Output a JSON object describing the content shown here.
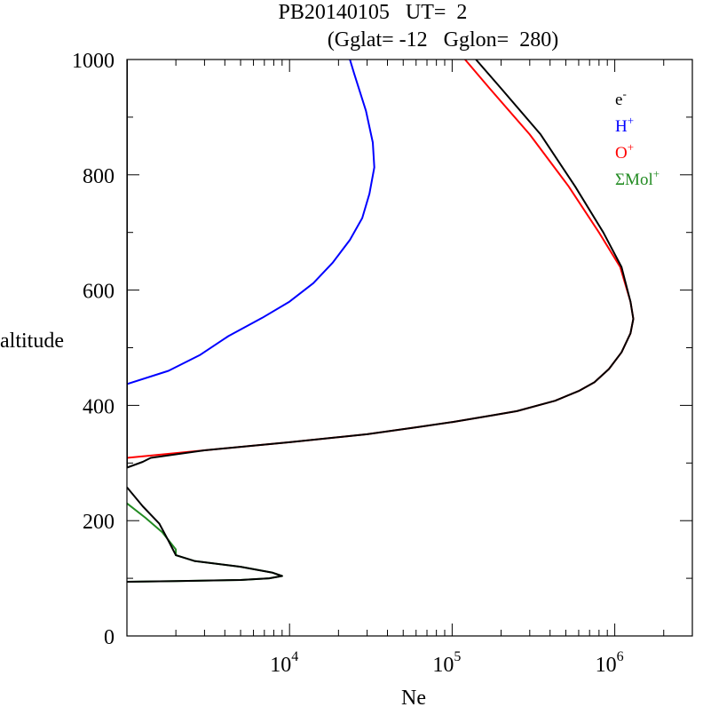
{
  "title_line1": "PB20140105   UT=  2",
  "title_line2": "(Gglat= -12   Gglon=  280)",
  "colors": {
    "e": "#000000",
    "H": "#0000ff",
    "O": "#ff0000",
    "Mol": "#228b22",
    "axis": "#000000"
  },
  "chart_data": {
    "type": "line",
    "xlabel": "Ne",
    "ylabel": "altitude",
    "xscale": "log",
    "xlim": [
      1000,
      3000000
    ],
    "ylim": [
      0,
      1000
    ],
    "x_tick_labels": [
      {
        "value": 10000,
        "base": "10",
        "exp": "4"
      },
      {
        "value": 100000,
        "base": "10",
        "exp": "5"
      },
      {
        "value": 1000000,
        "base": "10",
        "exp": "6"
      }
    ],
    "y_tick_labels": [
      "0",
      "200",
      "400",
      "600",
      "800",
      "1000"
    ],
    "y_ticks": [
      0,
      200,
      400,
      600,
      800,
      1000
    ],
    "legend_position": "top-right",
    "legend": [
      {
        "base": "e",
        "sup": "-",
        "color": "#000000"
      },
      {
        "base": "H",
        "sup": "+",
        "color": "#0000ff"
      },
      {
        "base": "O",
        "sup": "+",
        "color": "#ff0000"
      },
      {
        "base": "ΣMol",
        "sup": "+",
        "color": "#228b22"
      }
    ],
    "series": [
      {
        "key": "H",
        "color": "#0000ff",
        "points": [
          [
            1000,
            437
          ],
          [
            1800,
            460
          ],
          [
            2800,
            487
          ],
          [
            4200,
            520
          ],
          [
            6800,
            552
          ],
          [
            10000,
            580
          ],
          [
            14000,
            612
          ],
          [
            18500,
            648
          ],
          [
            23500,
            687
          ],
          [
            28000,
            725
          ],
          [
            31000,
            767
          ],
          [
            33200,
            813
          ],
          [
            32500,
            856
          ],
          [
            29500,
            911
          ],
          [
            25000,
            975
          ],
          [
            23500,
            1000
          ]
        ]
      },
      {
        "key": "O",
        "color": "#ff0000",
        "points": [
          [
            1000,
            309
          ],
          [
            3000,
            322
          ],
          [
            10000,
            336
          ],
          [
            30000,
            350
          ],
          [
            60000,
            362
          ],
          [
            100000,
            371
          ],
          [
            180000,
            383
          ],
          [
            250000,
            390
          ],
          [
            430000,
            408
          ],
          [
            600000,
            425
          ],
          [
            750000,
            440
          ],
          [
            920000,
            463
          ],
          [
            1100000,
            492
          ],
          [
            1250000,
            525
          ],
          [
            1300000,
            550
          ],
          [
            1250000,
            580
          ],
          [
            1080000,
            640
          ],
          [
            800000,
            700
          ],
          [
            520000,
            780
          ],
          [
            300000,
            870
          ],
          [
            170000,
            950
          ],
          [
            120000,
            1000
          ]
        ]
      },
      {
        "key": "e",
        "color": "#000000",
        "points": [
          [
            1000,
            1000
          ],
          [
            1000,
            292
          ],
          [
            1250,
            302
          ],
          [
            1400,
            309
          ],
          [
            3000,
            322
          ],
          [
            10000,
            336
          ],
          [
            30000,
            350
          ],
          [
            60000,
            362
          ],
          [
            100000,
            371
          ],
          [
            180000,
            383
          ],
          [
            250000,
            390
          ],
          [
            430000,
            408
          ],
          [
            600000,
            425
          ],
          [
            750000,
            440
          ],
          [
            920000,
            463
          ],
          [
            1100000,
            492
          ],
          [
            1250000,
            525
          ],
          [
            1300000,
            550
          ],
          [
            1250000,
            580
          ],
          [
            1100000,
            640
          ],
          [
            850000,
            700
          ],
          [
            570000,
            780
          ],
          [
            350000,
            870
          ],
          [
            200000,
            950
          ],
          [
            140000,
            1000
          ]
        ],
        "low_branch": [
          [
            1000,
            258
          ],
          [
            1250,
            225
          ],
          [
            1580,
            195
          ],
          [
            1800,
            165
          ],
          [
            2000,
            140
          ],
          [
            2600,
            130
          ],
          [
            5000,
            120
          ],
          [
            7800,
            110
          ],
          [
            9000,
            104
          ],
          [
            7500,
            100
          ],
          [
            5000,
            97
          ],
          [
            2000,
            95
          ],
          [
            1000,
            94
          ]
        ]
      },
      {
        "key": "Mol",
        "color": "#228b22",
        "points": [
          [
            1000,
            230
          ],
          [
            1300,
            205
          ],
          [
            1650,
            180
          ],
          [
            2000,
            150
          ],
          [
            2000,
            140
          ],
          [
            2600,
            130
          ],
          [
            5000,
            120
          ],
          [
            7800,
            110
          ],
          [
            9000,
            104
          ],
          [
            7500,
            100
          ],
          [
            5000,
            97
          ],
          [
            2000,
            95
          ],
          [
            1000,
            94
          ]
        ]
      }
    ]
  }
}
